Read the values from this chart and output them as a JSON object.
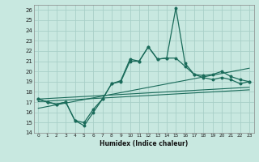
{
  "title": "",
  "xlabel": "Humidex (Indice chaleur)",
  "background_color": "#c8e8e0",
  "grid_color": "#a8cfc8",
  "line_color": "#1a6b5a",
  "xlim": [
    -0.5,
    23.5
  ],
  "ylim": [
    14,
    26.5
  ],
  "yticks": [
    14,
    15,
    16,
    17,
    18,
    19,
    20,
    21,
    22,
    23,
    24,
    25,
    26
  ],
  "xticks": [
    0,
    1,
    2,
    3,
    4,
    5,
    6,
    7,
    8,
    9,
    10,
    11,
    12,
    13,
    14,
    15,
    16,
    17,
    18,
    19,
    20,
    21,
    22,
    23
  ],
  "x": [
    0,
    1,
    2,
    3,
    4,
    5,
    6,
    7,
    8,
    9,
    10,
    11,
    12,
    13,
    14,
    15,
    16,
    17,
    18,
    19,
    20,
    21,
    22,
    23
  ],
  "y_main": [
    17.3,
    17.0,
    16.8,
    17.0,
    15.2,
    14.7,
    16.0,
    17.3,
    18.8,
    19.1,
    21.2,
    21.0,
    22.4,
    21.2,
    21.3,
    26.2,
    20.8,
    19.7,
    19.4,
    19.2,
    19.4,
    19.2,
    18.8,
    19.0
  ],
  "y_upper": [
    17.3,
    17.0,
    16.8,
    17.0,
    15.2,
    15.0,
    16.3,
    17.3,
    18.8,
    19.0,
    21.0,
    21.0,
    22.4,
    21.2,
    21.3,
    21.3,
    20.5,
    19.7,
    19.6,
    19.7,
    20.0,
    19.5,
    19.2,
    19.0
  ],
  "y_lin1": [
    16.4,
    16.57,
    16.74,
    16.91,
    17.08,
    17.25,
    17.42,
    17.59,
    17.76,
    17.93,
    18.1,
    18.27,
    18.44,
    18.61,
    18.78,
    18.95,
    19.12,
    19.29,
    19.46,
    19.63,
    19.8,
    19.97,
    20.14,
    20.31
  ],
  "y_lin2": [
    17.05,
    17.1,
    17.15,
    17.2,
    17.25,
    17.3,
    17.35,
    17.4,
    17.45,
    17.5,
    17.55,
    17.6,
    17.65,
    17.7,
    17.75,
    17.8,
    17.85,
    17.9,
    17.95,
    18.0,
    18.05,
    18.1,
    18.15,
    18.2
  ],
  "y_lin3": [
    17.3,
    17.35,
    17.4,
    17.45,
    17.5,
    17.55,
    17.6,
    17.65,
    17.7,
    17.75,
    17.8,
    17.85,
    17.9,
    17.95,
    18.0,
    18.05,
    18.1,
    18.15,
    18.2,
    18.25,
    18.3,
    18.35,
    18.4,
    18.45
  ]
}
